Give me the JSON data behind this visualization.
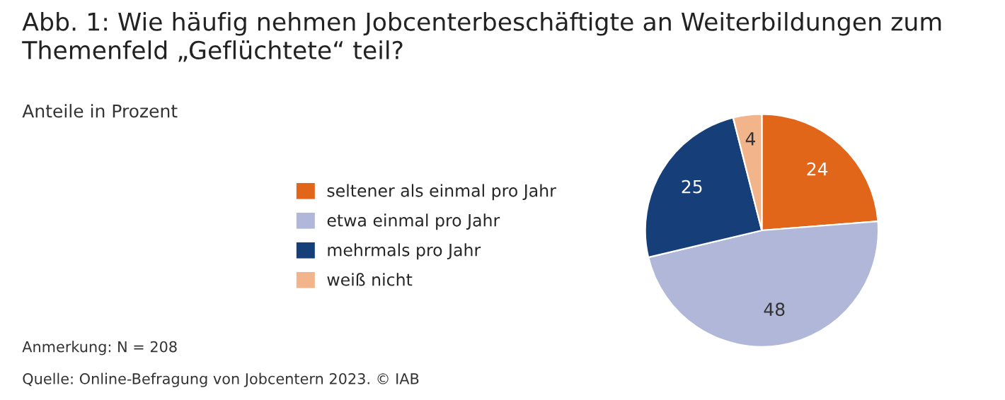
{
  "chart_data": {
    "type": "pie",
    "title": "Abb. 1: Wie häufig nehmen Jobcenterbeschäftigte an Weiterbildungen zum\nThemenfeld „Geflüchtete“ teil?",
    "subtitle": "Anteile in Prozent",
    "categories": [
      "seltener als einmal pro Jahr",
      "etwa einmal pro Jahr",
      "mehrmals pro Jahr",
      "weiß nicht"
    ],
    "values": [
      24,
      48,
      25,
      4
    ],
    "colors": [
      "#e2661a",
      "#b0b7d8",
      "#163f7a",
      "#f2b48a"
    ],
    "data_labels": true,
    "legend": "left",
    "annotations": [
      "Anmerkung: N = 208",
      "Quelle: Online-Befragung von Jobcentern 2023. © IAB"
    ]
  }
}
